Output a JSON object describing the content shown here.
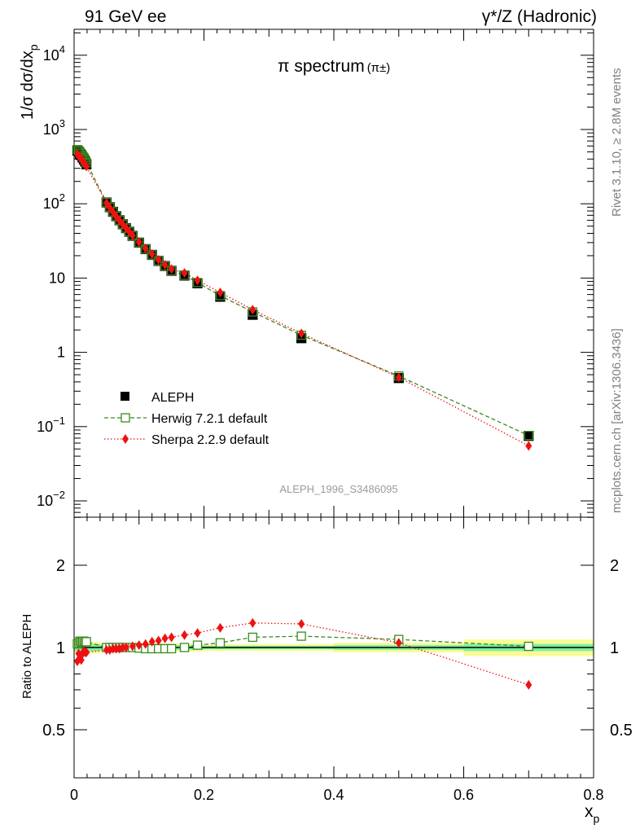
{
  "header": {
    "left": "91 GeV ee",
    "right": "γ*/Z (Hadronic)"
  },
  "plot_title": "π spectrum",
  "plot_title_sub": "(π±)",
  "side_text": {
    "rivet": "Rivet 3.1.10, ≥ 2.8M events",
    "mcplots": "mcplots.cern.ch [arXiv:1306.3436]"
  },
  "analysis_id": "ALEPH_1996_S3486095",
  "colors": {
    "data": "#000000",
    "herwig": "#3a8a1e",
    "sherpa": "#ee1111",
    "band_green": "#7cf0a0",
    "band_yellow": "#fbfb96"
  },
  "chart_data": [
    {
      "type": "scatter",
      "yscale": "log",
      "ylabel": "1/σ dσ/dx_p",
      "xlim": [
        0,
        0.8
      ],
      "ylim": [
        0.006,
        25000
      ],
      "x_ticks": [
        "0",
        "0.2",
        "0.4",
        "0.6",
        "0.8"
      ],
      "y_ticks": [
        "10^-2",
        "10^-1",
        "1",
        "10",
        "10^2",
        "10^3",
        "10^4"
      ],
      "legend_position": "lower-left",
      "series": [
        {
          "name": "ALEPH",
          "x": [
            0.005,
            0.007,
            0.009,
            0.011,
            0.013,
            0.015,
            0.017,
            0.019,
            0.05,
            0.055,
            0.06,
            0.065,
            0.07,
            0.075,
            0.08,
            0.085,
            0.09,
            0.1,
            0.11,
            0.12,
            0.13,
            0.14,
            0.15,
            0.17,
            0.19,
            0.225,
            0.275,
            0.35,
            0.5,
            0.7
          ],
          "y": [
            520,
            500,
            470,
            450,
            420,
            395,
            370,
            340,
            104,
            90,
            78,
            68,
            60,
            53,
            47,
            42,
            37,
            30,
            24.5,
            20.5,
            17,
            14.5,
            12.5,
            10.8,
            8.5,
            5.6,
            3.2,
            1.55,
            0.45,
            0.075
          ]
        },
        {
          "name": "Herwig 7.2.1 default",
          "x": [
            0.005,
            0.007,
            0.009,
            0.011,
            0.013,
            0.015,
            0.017,
            0.019,
            0.05,
            0.055,
            0.06,
            0.065,
            0.07,
            0.075,
            0.08,
            0.085,
            0.09,
            0.1,
            0.11,
            0.12,
            0.13,
            0.14,
            0.15,
            0.17,
            0.19,
            0.225,
            0.275,
            0.35,
            0.5,
            0.7
          ],
          "y": [
            536,
            520,
            496,
            471,
            440,
            416,
            389,
            357,
            104,
            90,
            78,
            68,
            60,
            53,
            47,
            42,
            37,
            30,
            24.5,
            20.5,
            17,
            14.5,
            12.5,
            10.9,
            8.7,
            5.8,
            3.5,
            1.7,
            0.48,
            0.076
          ]
        },
        {
          "name": "Sherpa 2.2.9 default",
          "x": [
            0.005,
            0.007,
            0.009,
            0.011,
            0.013,
            0.015,
            0.017,
            0.019,
            0.05,
            0.055,
            0.06,
            0.065,
            0.07,
            0.075,
            0.08,
            0.085,
            0.09,
            0.1,
            0.11,
            0.12,
            0.13,
            0.14,
            0.15,
            0.17,
            0.19,
            0.225,
            0.275,
            0.35,
            0.5,
            0.7
          ],
          "y": [
            463,
            450,
            420,
            405,
            380,
            360,
            340,
            318,
            102,
            88.5,
            77,
            67,
            59.5,
            52.8,
            47,
            42.2,
            37.4,
            30.5,
            25,
            21,
            17.6,
            15.1,
            13.2,
            11.7,
            9.3,
            6.4,
            3.75,
            1.8,
            0.46,
            0.055
          ]
        }
      ]
    },
    {
      "type": "scatter",
      "ylabel": "Ratio to ALEPH",
      "xlabel": "x_p",
      "xlim": [
        0,
        0.8
      ],
      "ylim": [
        0.4,
        2.5
      ],
      "x_ticks": [
        "0",
        "0.2",
        "0.4",
        "0.6",
        "0.8"
      ],
      "y_ticks": [
        "0.5",
        "1",
        "2"
      ],
      "band_edges": [
        0.0,
        0.04,
        0.2,
        0.4,
        0.6,
        0.8
      ],
      "band_green": [
        0.03,
        0.02,
        0.015,
        0.02,
        0.03
      ],
      "band_yellow": [
        0.05,
        0.035,
        0.03,
        0.04,
        0.07
      ],
      "series": [
        {
          "name": "Herwig 7.2.1 default",
          "x": [
            0.005,
            0.007,
            0.009,
            0.011,
            0.013,
            0.015,
            0.017,
            0.019,
            0.05,
            0.055,
            0.06,
            0.065,
            0.07,
            0.075,
            0.08,
            0.09,
            0.1,
            0.11,
            0.12,
            0.13,
            0.14,
            0.15,
            0.17,
            0.19,
            0.225,
            0.275,
            0.35,
            0.5,
            0.7
          ],
          "y": [
            1.03,
            1.04,
            1.055,
            1.045,
            1.05,
            1.055,
            1.05,
            1.05,
            1.0,
            1.0,
            1.0,
            1.0,
            1.0,
            1.0,
            1.0,
            1.0,
            0.995,
            0.99,
            0.99,
            0.99,
            0.99,
            0.99,
            1.0,
            1.02,
            1.04,
            1.09,
            1.1,
            1.07,
            1.01
          ]
        },
        {
          "name": "Sherpa 2.2.9 default",
          "x": [
            0.005,
            0.007,
            0.009,
            0.011,
            0.013,
            0.015,
            0.017,
            0.019,
            0.05,
            0.055,
            0.06,
            0.065,
            0.07,
            0.075,
            0.08,
            0.09,
            0.1,
            0.11,
            0.12,
            0.13,
            0.14,
            0.15,
            0.17,
            0.19,
            0.225,
            0.275,
            0.35,
            0.5,
            0.7
          ],
          "y": [
            0.89,
            0.95,
            0.92,
            0.9,
            0.95,
            0.97,
            0.96,
            0.96,
            0.98,
            0.98,
            0.99,
            0.99,
            0.99,
            1.0,
            1.0,
            1.01,
            1.02,
            1.03,
            1.05,
            1.06,
            1.08,
            1.09,
            1.11,
            1.13,
            1.18,
            1.23,
            1.22,
            1.04,
            0.73
          ]
        }
      ]
    }
  ]
}
